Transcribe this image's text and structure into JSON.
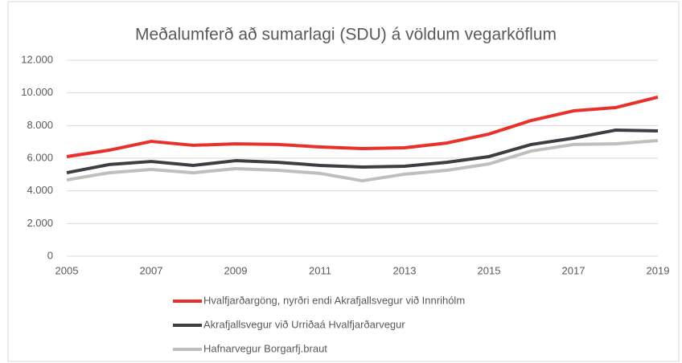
{
  "chart_data": {
    "type": "line",
    "title": "Meðalumferð að sumarlagi (SDU) á völdum vegarköflum",
    "x": [
      2005,
      2006,
      2007,
      2008,
      2009,
      2010,
      2011,
      2012,
      2013,
      2014,
      2015,
      2016,
      2017,
      2018,
      2019
    ],
    "xlim": [
      2005,
      2019
    ],
    "xticks": [
      2005,
      2007,
      2009,
      2011,
      2013,
      2015,
      2017,
      2019
    ],
    "ylim": [
      0,
      12000
    ],
    "yticks": [
      0,
      {
        "value": 2000,
        "label": "2.000"
      },
      {
        "value": 4000,
        "label": "4.000"
      },
      {
        "value": 6000,
        "label": "6.000"
      },
      {
        "value": 8000,
        "label": "8.000"
      },
      {
        "value": 10000,
        "label": "10.000"
      },
      {
        "value": 12000,
        "label": "12.000"
      }
    ],
    "grid": true,
    "legend": "bottom",
    "series": [
      {
        "name": "Hvalfjarðargöng, nyrðri endi Akrafjallsvegur við Innrihólm",
        "color": "#e8312a",
        "values": [
          6100,
          6490,
          7030,
          6790,
          6880,
          6840,
          6690,
          6590,
          6640,
          6930,
          7480,
          8310,
          8900,
          9100,
          9740
        ]
      },
      {
        "name": "Akrafjallsvegur við Urriðaá Hvalfjarðarvegur",
        "color": "#3b3e43",
        "values": [
          5110,
          5610,
          5800,
          5560,
          5850,
          5750,
          5560,
          5460,
          5510,
          5750,
          6100,
          6840,
          7230,
          7720,
          7670
        ]
      },
      {
        "name": "Hafnarvegur Borgarfj.braut",
        "color": "#bfbfbf",
        "values": [
          4670,
          5110,
          5310,
          5110,
          5360,
          5260,
          5070,
          4620,
          5020,
          5260,
          5650,
          6440,
          6840,
          6880,
          7080
        ]
      }
    ]
  }
}
